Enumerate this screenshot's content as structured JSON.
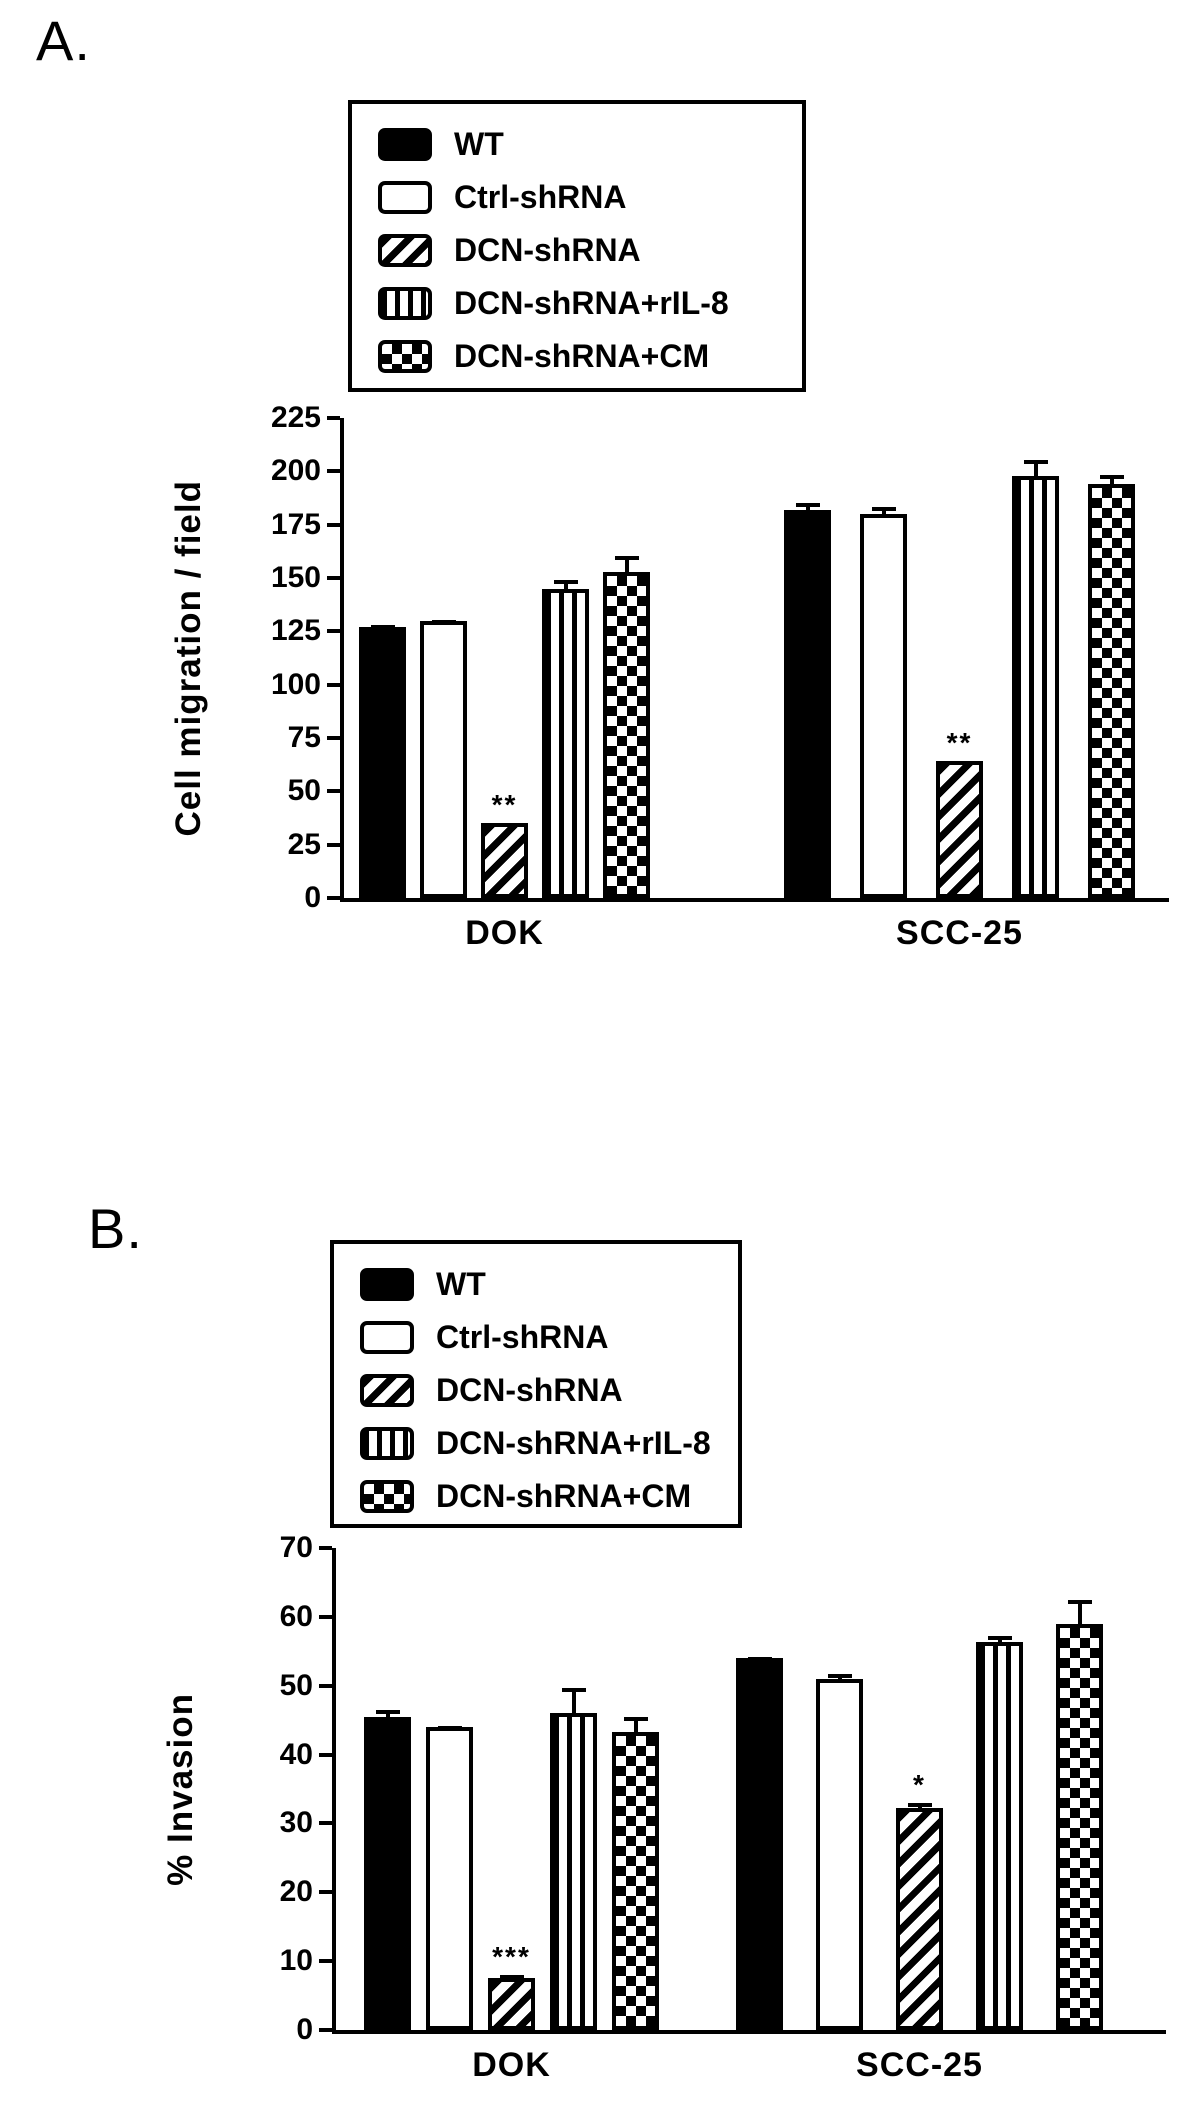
{
  "panels": [
    {
      "label": "A."
    },
    {
      "label": "B."
    }
  ],
  "legend": {
    "items": [
      {
        "label": "WT",
        "pattern": "solid",
        "swatch": "solid-black-swatch"
      },
      {
        "label": "Ctrl-shRNA",
        "pattern": "open",
        "swatch": "open-white-swatch"
      },
      {
        "label": "DCN-shRNA",
        "pattern": "hatch",
        "swatch": "diagonal-hatch-swatch"
      },
      {
        "label": "DCN-shRNA+rIL-8",
        "pattern": "vstripe",
        "swatch": "vertical-stripe-swatch"
      },
      {
        "label": "DCN-shRNA+CM",
        "pattern": "checker",
        "swatch": "checkerboard-swatch"
      }
    ]
  },
  "chart_data": [
    {
      "type": "bar",
      "title": "",
      "ylabel": "Cell migration / field",
      "ylim": [
        0,
        225
      ],
      "yticks": [
        0,
        25,
        50,
        75,
        100,
        125,
        150,
        175,
        200,
        225
      ],
      "grid": false,
      "legend_position": "top",
      "categories": [
        "DOK",
        "SCC-25"
      ],
      "series": [
        {
          "name": "WT",
          "pattern": "solid",
          "values": [
            127,
            182
          ],
          "errors": [
            3,
            5
          ],
          "sig": [
            "",
            ""
          ]
        },
        {
          "name": "Ctrl-shRNA",
          "pattern": "open",
          "values": [
            130,
            180
          ],
          "errors": [
            2,
            5
          ],
          "sig": [
            "",
            ""
          ]
        },
        {
          "name": "DCN-shRNA",
          "pattern": "hatch",
          "values": [
            35,
            64
          ],
          "errors": [
            2,
            2
          ],
          "sig": [
            "**",
            "**"
          ]
        },
        {
          "name": "DCN-shRNA+rIL-8",
          "pattern": "vstripe",
          "values": [
            145,
            198
          ],
          "errors": [
            6,
            9
          ],
          "sig": [
            "",
            ""
          ]
        },
        {
          "name": "DCN-shRNA+CM",
          "pattern": "checker",
          "values": [
            153,
            194
          ],
          "errors": [
            9,
            6
          ],
          "sig": [
            "",
            ""
          ]
        }
      ]
    },
    {
      "type": "bar",
      "title": "",
      "ylabel": "% Invasion",
      "ylim": [
        0,
        70
      ],
      "yticks": [
        0,
        10,
        20,
        30,
        40,
        50,
        60,
        70
      ],
      "grid": false,
      "legend_position": "top",
      "categories": [
        "DOK",
        "SCC-25"
      ],
      "series": [
        {
          "name": "WT",
          "pattern": "solid",
          "values": [
            45.5,
            54
          ],
          "errors": [
            1.5,
            0.7
          ],
          "sig": [
            "",
            ""
          ]
        },
        {
          "name": "Ctrl-shRNA",
          "pattern": "open",
          "values": [
            44,
            51
          ],
          "errors": [
            0.8,
            1.3
          ],
          "sig": [
            "",
            ""
          ]
        },
        {
          "name": "DCN-shRNA",
          "pattern": "hatch",
          "values": [
            7.5,
            32.3
          ],
          "errors": [
            1,
            1.2
          ],
          "sig": [
            "***",
            "*"
          ]
        },
        {
          "name": "DCN-shRNA+rIL-8",
          "pattern": "vstripe",
          "values": [
            46,
            56.3
          ],
          "errors": [
            4.3,
            1.5
          ],
          "sig": [
            "",
            ""
          ]
        },
        {
          "name": "DCN-shRNA+CM",
          "pattern": "checker",
          "values": [
            43.3,
            59
          ],
          "errors": [
            2.8,
            4
          ],
          "sig": [
            "",
            ""
          ]
        }
      ]
    }
  ]
}
